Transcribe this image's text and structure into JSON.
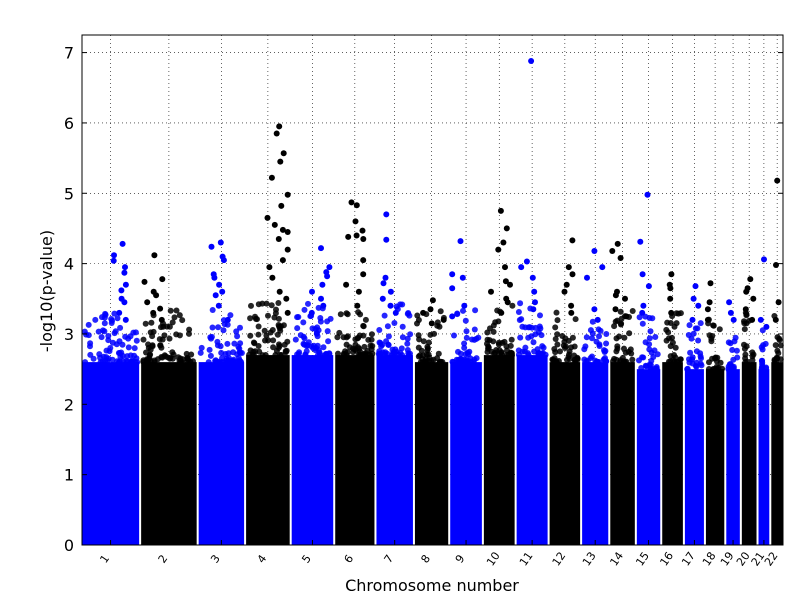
{
  "chart_data": {
    "type": "scatter",
    "title": "",
    "xlabel": "Chromosome number",
    "ylabel": "-log10(p-value)",
    "ylim": [
      0,
      7.25
    ],
    "yticks": [
      "0",
      "1",
      "2",
      "3",
      "4",
      "5",
      "6",
      "7"
    ],
    "grid": true,
    "legend": "none",
    "colors": {
      "odd": "#0000ff",
      "even": "#000000"
    },
    "chromosomes": [
      {
        "label": "1",
        "dense_top": 2.6,
        "peaks": [
          4.28,
          4.12,
          4.04,
          3.95,
          3.87,
          3.7,
          3.62,
          3.5,
          3.45,
          3.3,
          3.2
        ]
      },
      {
        "label": "2",
        "dense_top": 2.6,
        "peaks": [
          4.12,
          3.78,
          3.74,
          3.6,
          3.55,
          3.45,
          3.36,
          3.3,
          3.2
        ]
      },
      {
        "label": "3",
        "dense_top": 2.6,
        "peaks": [
          4.3,
          4.24,
          4.1,
          4.05,
          3.85,
          3.8,
          3.7,
          3.6,
          3.55,
          3.4,
          3.2
        ]
      },
      {
        "label": "4",
        "dense_top": 2.7,
        "peaks": [
          5.95,
          5.85,
          5.57,
          5.45,
          5.22,
          4.98,
          4.82,
          4.65,
          4.55,
          4.48,
          4.45,
          4.35,
          4.2,
          4.05,
          3.95,
          3.8,
          3.6,
          3.5,
          3.3
        ]
      },
      {
        "label": "5",
        "dense_top": 2.7,
        "peaks": [
          4.22,
          3.95,
          3.88,
          3.82,
          3.7,
          3.6,
          3.5,
          3.4,
          3.3
        ]
      },
      {
        "label": "6",
        "dense_top": 2.7,
        "peaks": [
          4.87,
          4.83,
          4.6,
          4.47,
          4.4,
          4.38,
          4.35,
          4.05,
          3.85,
          3.7,
          3.6,
          3.4
        ]
      },
      {
        "label": "7",
        "dense_top": 2.7,
        "peaks": [
          4.7,
          4.34,
          3.8,
          3.72,
          3.6,
          3.5,
          3.4,
          3.3
        ]
      },
      {
        "label": "8",
        "dense_top": 2.6,
        "peaks": [
          3.48,
          3.35,
          3.3,
          3.2,
          3.15
        ]
      },
      {
        "label": "9",
        "dense_top": 2.6,
        "peaks": [
          4.32,
          3.85,
          3.8,
          3.65,
          3.4,
          3.25
        ]
      },
      {
        "label": "10",
        "dense_top": 2.7,
        "peaks": [
          4.75,
          4.5,
          4.3,
          4.2,
          3.95,
          3.75,
          3.7,
          3.6,
          3.5,
          3.45,
          3.3
        ]
      },
      {
        "label": "11",
        "dense_top": 2.7,
        "peaks": [
          6.88,
          4.03,
          3.95,
          3.8,
          3.6,
          3.45,
          3.35
        ]
      },
      {
        "label": "12",
        "dense_top": 2.6,
        "peaks": [
          4.33,
          3.95,
          3.85,
          3.7,
          3.6,
          3.4,
          3.3
        ]
      },
      {
        "label": "13",
        "dense_top": 2.6,
        "peaks": [
          4.18,
          3.95,
          3.8,
          3.35,
          3.2
        ]
      },
      {
        "label": "14",
        "dense_top": 2.6,
        "peaks": [
          4.28,
          4.18,
          4.08,
          3.6,
          3.55,
          3.5,
          3.35,
          3.25
        ]
      },
      {
        "label": "15",
        "dense_top": 2.5,
        "peaks": [
          4.98,
          4.31,
          3.85,
          3.68,
          3.4,
          3.3
        ]
      },
      {
        "label": "16",
        "dense_top": 2.6,
        "peaks": [
          3.85,
          3.7,
          3.65,
          3.5,
          3.3
        ]
      },
      {
        "label": "17",
        "dense_top": 2.5,
        "peaks": [
          3.68,
          3.5,
          3.4,
          3.2
        ]
      },
      {
        "label": "18",
        "dense_top": 2.5,
        "peaks": [
          3.72,
          3.45,
          3.35,
          3.2
        ]
      },
      {
        "label": "19",
        "dense_top": 2.5,
        "peaks": [
          3.45,
          3.3,
          3.2
        ]
      },
      {
        "label": "20",
        "dense_top": 2.6,
        "peaks": [
          3.78,
          3.65,
          3.6,
          3.5,
          3.35,
          3.2
        ]
      },
      {
        "label": "21",
        "dense_top": 2.5,
        "peaks": [
          4.06,
          3.2,
          3.1
        ]
      },
      {
        "label": "22",
        "dense_top": 2.6,
        "peaks": [
          5.18,
          3.98,
          3.45,
          3.2
        ]
      }
    ]
  }
}
